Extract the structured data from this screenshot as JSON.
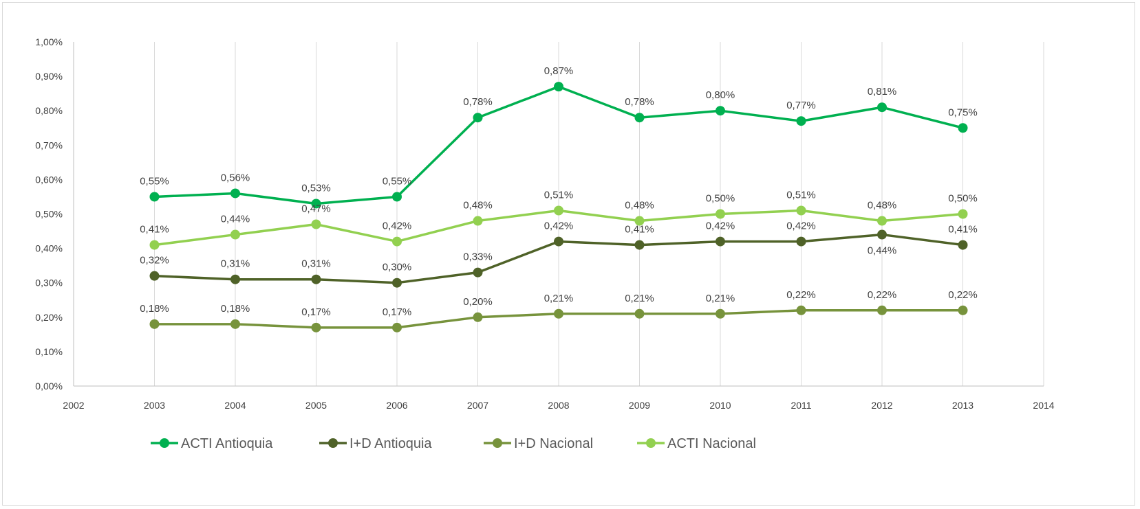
{
  "chart_data": {
    "type": "line",
    "title": "",
    "xlabel": "",
    "ylabel": "",
    "x_ticks": [
      2002,
      2003,
      2004,
      2005,
      2006,
      2007,
      2008,
      2009,
      2010,
      2011,
      2012,
      2013,
      2014
    ],
    "x_tick_labels": [
      "2002",
      "2003",
      "2004",
      "2005",
      "2006",
      "2007",
      "2008",
      "2009",
      "2010",
      "2011",
      "2012",
      "2013",
      "2014"
    ],
    "xlim": [
      2002,
      2014
    ],
    "y_ticks": [
      0,
      0.1,
      0.2,
      0.3,
      0.4,
      0.5,
      0.6,
      0.7,
      0.8,
      0.9,
      1.0
    ],
    "y_tick_labels": [
      "0,00%",
      "0,10%",
      "0,20%",
      "0,30%",
      "0,40%",
      "0,50%",
      "0,60%",
      "0,70%",
      "0,80%",
      "0,90%",
      "1,00%"
    ],
    "ylim": [
      0,
      1.0
    ],
    "grid": "vertical",
    "legend_position": "bottom",
    "x": [
      2003,
      2004,
      2005,
      2006,
      2007,
      2008,
      2009,
      2010,
      2011,
      2012,
      2013
    ],
    "series": [
      {
        "name": "ACTI Antioquia",
        "color": "#00b050",
        "values": [
          0.55,
          0.56,
          0.53,
          0.55,
          0.78,
          0.87,
          0.78,
          0.8,
          0.77,
          0.81,
          0.75
        ],
        "labels": [
          "0,55%",
          "0,56%",
          "0,53%",
          "0,55%",
          "0,78%",
          "0,87%",
          "0,78%",
          "0,80%",
          "0,77%",
          "0,81%",
          "0,75%"
        ],
        "label_positions": [
          "above",
          "above",
          "above",
          "above",
          "above",
          "above",
          "above",
          "above",
          "above",
          "above",
          "above"
        ]
      },
      {
        "name": "I+D  Antioquia",
        "color": "#4f6228",
        "values": [
          0.32,
          0.31,
          0.31,
          0.3,
          0.33,
          0.42,
          0.41,
          0.42,
          0.42,
          0.44,
          0.41
        ],
        "labels": [
          "0,32%",
          "0,31%",
          "0,31%",
          "0,30%",
          "0,33%",
          "0,42%",
          "0,41%",
          "0,42%",
          "0,42%",
          "0,44%",
          "0,41%"
        ],
        "label_positions": [
          "above",
          "above",
          "above",
          "above",
          "above",
          "above",
          "above",
          "above",
          "above",
          "below",
          "above"
        ]
      },
      {
        "name": "I+D Nacional",
        "color": "#77933c",
        "values": [
          0.18,
          0.18,
          0.17,
          0.17,
          0.2,
          0.21,
          0.21,
          0.21,
          0.22,
          0.22,
          0.22
        ],
        "labels": [
          "0,18%",
          "0,18%",
          "0,17%",
          "0,17%",
          "0,20%",
          "0,21%",
          "0,21%",
          "0,21%",
          "0,22%",
          "0,22%",
          "0,22%"
        ],
        "label_positions": [
          "above",
          "above",
          "above",
          "above",
          "above",
          "above",
          "above",
          "above",
          "above",
          "above",
          "above"
        ]
      },
      {
        "name": "ACTI Nacional",
        "color": "#92d050",
        "values": [
          0.41,
          0.44,
          0.47,
          0.42,
          0.48,
          0.51,
          0.48,
          0.5,
          0.51,
          0.48,
          0.5
        ],
        "labels": [
          "0,41%",
          "0,44%",
          "0,47%",
          "0,42%",
          "0,48%",
          "0,51%",
          "0,48%",
          "0,50%",
          "0,51%",
          "0,48%",
          "0,50%"
        ],
        "label_positions": [
          "above",
          "above",
          "above",
          "above",
          "above",
          "above",
          "above",
          "above",
          "above",
          "above",
          "above"
        ]
      }
    ]
  },
  "colors": {
    "axis": "#bfbfbf",
    "grid": "#d9d9d9",
    "text": "#404040",
    "legend_text": "#595959"
  }
}
